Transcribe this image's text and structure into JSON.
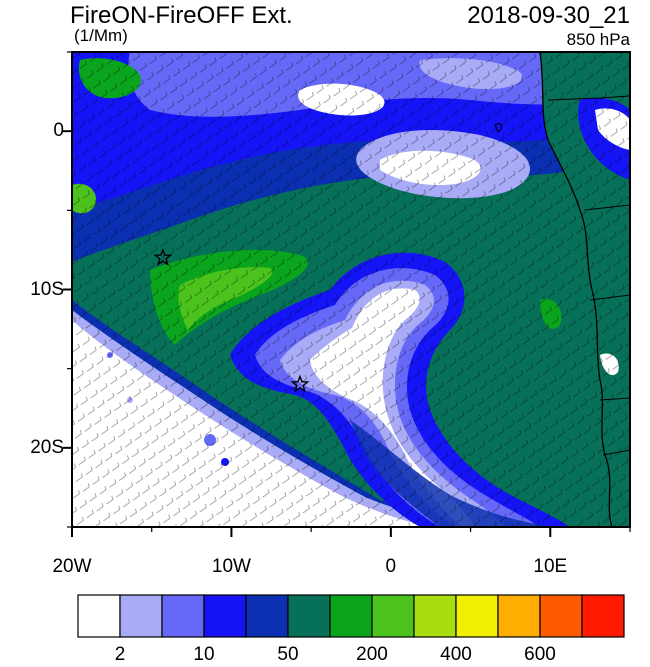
{
  "header": {
    "title": "FireON-FireOFF Ext.",
    "units": "(1/Mm)",
    "datetime": "2018-09-30_21",
    "level": "850 hPa"
  },
  "map": {
    "projection": "lat-lon",
    "lon_range": [
      -20,
      15
    ],
    "lat_range": [
      -25,
      5
    ],
    "lat_ticks": [
      {
        "value": 0,
        "label": "0"
      },
      {
        "value": -10,
        "label": "10S"
      },
      {
        "value": -20,
        "label": "20S"
      }
    ],
    "lon_ticks": [
      {
        "value": -20,
        "label": "20W"
      },
      {
        "value": -10,
        "label": "10W"
      },
      {
        "value": 0,
        "label": "0"
      },
      {
        "value": 10,
        "label": "10E"
      }
    ],
    "markers": [
      {
        "name": "star-marker-west",
        "lon": -14.3,
        "lat": -8.0
      },
      {
        "name": "star-marker-center",
        "lon": -5.7,
        "lat": -16.0
      }
    ],
    "wind_barbs": "850 hPa wind barbs"
  },
  "colorbar": {
    "colors": [
      "#ffffff",
      "#a9abf7",
      "#6669f7",
      "#1414f7",
      "#0a2fb0",
      "#077058",
      "#0aa51c",
      "#4cc31c",
      "#a8dd10",
      "#f0f000",
      "#ffad00",
      "#ff5a00",
      "#ff1a00"
    ],
    "tick_labels": [
      "2",
      "10",
      "50",
      "200",
      "400",
      "600"
    ]
  }
}
